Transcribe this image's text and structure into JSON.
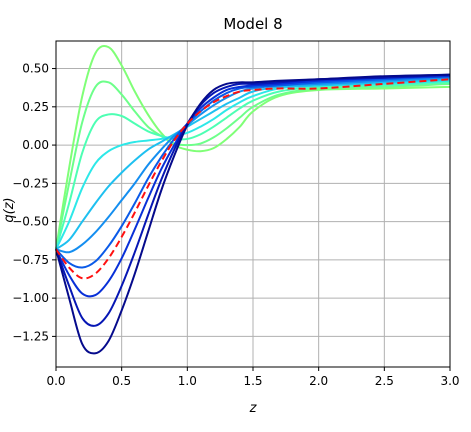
{
  "chart_data": {
    "type": "line",
    "title": "Model 8",
    "xlabel": "z",
    "ylabel": "q(z)",
    "xlim": [
      0.0,
      3.0
    ],
    "ylim": [
      -1.45,
      0.68
    ],
    "grid": true,
    "xticks": [
      0.0,
      0.5,
      1.0,
      1.5,
      2.0,
      2.5,
      3.0
    ],
    "xtick_labels": [
      "0.0",
      "0.5",
      "1.0",
      "1.5",
      "2.0",
      "2.5",
      "3.0"
    ],
    "yticks": [
      0.5,
      0.25,
      0.0,
      -0.25,
      -0.5,
      -0.75,
      -1.0,
      -1.25
    ],
    "ytick_labels": [
      "0.50",
      "0.25",
      "0.00",
      "−0.25",
      "−0.50",
      "−0.75",
      "−1.00",
      "−1.25"
    ],
    "series": [
      {
        "color": "#80ff77",
        "dashed": false,
        "x": [
          0,
          0.1,
          0.2,
          0.3,
          0.4,
          0.5,
          0.6,
          0.7,
          0.8,
          0.9,
          1.0,
          1.1,
          1.2,
          1.3,
          1.4,
          1.5,
          1.7,
          2.0,
          2.5,
          3.0
        ],
        "y": [
          -0.68,
          -0.15,
          0.32,
          0.6,
          0.64,
          0.52,
          0.35,
          0.2,
          0.08,
          0.0,
          -0.03,
          -0.04,
          -0.02,
          0.04,
          0.12,
          0.22,
          0.32,
          0.36,
          0.37,
          0.38
        ]
      },
      {
        "color": "#6dff8a",
        "dashed": false,
        "x": [
          0,
          0.1,
          0.2,
          0.3,
          0.4,
          0.5,
          0.6,
          0.7,
          0.8,
          0.9,
          1.0,
          1.1,
          1.2,
          1.3,
          1.4,
          1.5,
          1.7,
          2.0,
          2.5,
          3.0
        ],
        "y": [
          -0.68,
          -0.25,
          0.15,
          0.38,
          0.41,
          0.33,
          0.22,
          0.12,
          0.06,
          0.01,
          0.0,
          0.01,
          0.05,
          0.11,
          0.18,
          0.25,
          0.33,
          0.37,
          0.38,
          0.4
        ]
      },
      {
        "color": "#4dffb3",
        "dashed": false,
        "x": [
          0,
          0.1,
          0.2,
          0.3,
          0.4,
          0.5,
          0.6,
          0.7,
          0.8,
          0.9,
          1.0,
          1.1,
          1.2,
          1.3,
          1.4,
          1.5,
          1.7,
          2.0,
          2.5,
          3.0
        ],
        "y": [
          -0.68,
          -0.38,
          -0.05,
          0.15,
          0.2,
          0.19,
          0.14,
          0.09,
          0.06,
          0.04,
          0.04,
          0.07,
          0.12,
          0.18,
          0.24,
          0.29,
          0.35,
          0.38,
          0.39,
          0.41
        ]
      },
      {
        "color": "#2de8e8",
        "dashed": false,
        "x": [
          0,
          0.1,
          0.2,
          0.3,
          0.4,
          0.5,
          0.6,
          0.7,
          0.8,
          0.9,
          1.0,
          1.1,
          1.2,
          1.3,
          1.4,
          1.5,
          1.7,
          2.0,
          2.5,
          3.0
        ],
        "y": [
          -0.68,
          -0.5,
          -0.28,
          -0.12,
          -0.04,
          0.0,
          0.02,
          0.03,
          0.04,
          0.06,
          0.08,
          0.12,
          0.17,
          0.23,
          0.28,
          0.32,
          0.37,
          0.39,
          0.4,
          0.42
        ]
      },
      {
        "color": "#1ec0f0",
        "dashed": false,
        "x": [
          0,
          0.1,
          0.2,
          0.3,
          0.4,
          0.5,
          0.6,
          0.7,
          0.8,
          0.9,
          1.0,
          1.1,
          1.2,
          1.3,
          1.4,
          1.5,
          1.7,
          2.0,
          2.5,
          3.0
        ],
        "y": [
          -0.68,
          -0.62,
          -0.5,
          -0.38,
          -0.27,
          -0.18,
          -0.1,
          -0.03,
          0.02,
          0.07,
          0.12,
          0.17,
          0.22,
          0.27,
          0.31,
          0.35,
          0.38,
          0.39,
          0.41,
          0.43
        ]
      },
      {
        "color": "#148ef0",
        "dashed": false,
        "x": [
          0,
          0.1,
          0.2,
          0.3,
          0.4,
          0.5,
          0.6,
          0.7,
          0.8,
          0.9,
          1.0,
          1.1,
          1.2,
          1.3,
          1.4,
          1.5,
          1.7,
          2.0,
          2.5,
          3.0
        ],
        "y": [
          -0.68,
          -0.7,
          -0.65,
          -0.57,
          -0.47,
          -0.36,
          -0.25,
          -0.13,
          -0.03,
          0.06,
          0.13,
          0.2,
          0.26,
          0.31,
          0.35,
          0.37,
          0.39,
          0.4,
          0.42,
          0.44
        ]
      },
      {
        "color": "#0a5ae8",
        "dashed": false,
        "x": [
          0,
          0.1,
          0.2,
          0.3,
          0.4,
          0.5,
          0.6,
          0.7,
          0.8,
          0.9,
          1.0,
          1.1,
          1.2,
          1.3,
          1.4,
          1.5,
          1.7,
          2.0,
          2.5,
          3.0
        ],
        "y": [
          -0.68,
          -0.77,
          -0.8,
          -0.76,
          -0.66,
          -0.53,
          -0.38,
          -0.22,
          -0.08,
          0.04,
          0.14,
          0.22,
          0.29,
          0.34,
          0.37,
          0.38,
          0.39,
          0.41,
          0.43,
          0.45
        ]
      },
      {
        "color": "#ff1010",
        "dashed": true,
        "x": [
          0,
          0.1,
          0.2,
          0.3,
          0.4,
          0.5,
          0.6,
          0.7,
          0.8,
          0.9,
          1.0,
          1.1,
          1.2,
          1.3,
          1.4,
          1.5,
          1.7,
          2.0,
          2.5,
          3.0
        ],
        "y": [
          -0.68,
          -0.8,
          -0.87,
          -0.84,
          -0.74,
          -0.6,
          -0.44,
          -0.27,
          -0.11,
          0.03,
          0.14,
          0.22,
          0.28,
          0.32,
          0.35,
          0.36,
          0.37,
          0.37,
          0.4,
          0.43
        ]
      },
      {
        "color": "#0830d8",
        "dashed": false,
        "x": [
          0,
          0.1,
          0.2,
          0.3,
          0.4,
          0.5,
          0.6,
          0.7,
          0.8,
          0.9,
          1.0,
          1.1,
          1.2,
          1.3,
          1.4,
          1.5,
          1.7,
          2.0,
          2.5,
          3.0
        ],
        "y": [
          -0.68,
          -0.85,
          -0.97,
          -0.98,
          -0.89,
          -0.74,
          -0.55,
          -0.35,
          -0.16,
          0.0,
          0.14,
          0.24,
          0.31,
          0.36,
          0.38,
          0.39,
          0.4,
          0.42,
          0.44,
          0.45
        ]
      },
      {
        "color": "#0616b4",
        "dashed": false,
        "x": [
          0,
          0.1,
          0.2,
          0.3,
          0.4,
          0.5,
          0.6,
          0.7,
          0.8,
          0.9,
          1.0,
          1.1,
          1.2,
          1.3,
          1.4,
          1.5,
          1.7,
          2.0,
          2.5,
          3.0
        ],
        "y": [
          -0.68,
          -0.92,
          -1.13,
          -1.18,
          -1.1,
          -0.92,
          -0.7,
          -0.46,
          -0.23,
          -0.03,
          0.14,
          0.26,
          0.34,
          0.38,
          0.4,
          0.4,
          0.41,
          0.43,
          0.44,
          0.46
        ]
      },
      {
        "color": "#050a8c",
        "dashed": false,
        "x": [
          0,
          0.1,
          0.2,
          0.3,
          0.4,
          0.5,
          0.6,
          0.7,
          0.8,
          0.9,
          1.0,
          1.1,
          1.2,
          1.3,
          1.4,
          1.5,
          1.7,
          2.0,
          2.5,
          3.0
        ],
        "y": [
          -0.68,
          -1.0,
          -1.3,
          -1.36,
          -1.28,
          -1.08,
          -0.84,
          -0.57,
          -0.3,
          -0.07,
          0.13,
          0.27,
          0.36,
          0.4,
          0.41,
          0.41,
          0.42,
          0.43,
          0.45,
          0.46
        ]
      }
    ]
  }
}
